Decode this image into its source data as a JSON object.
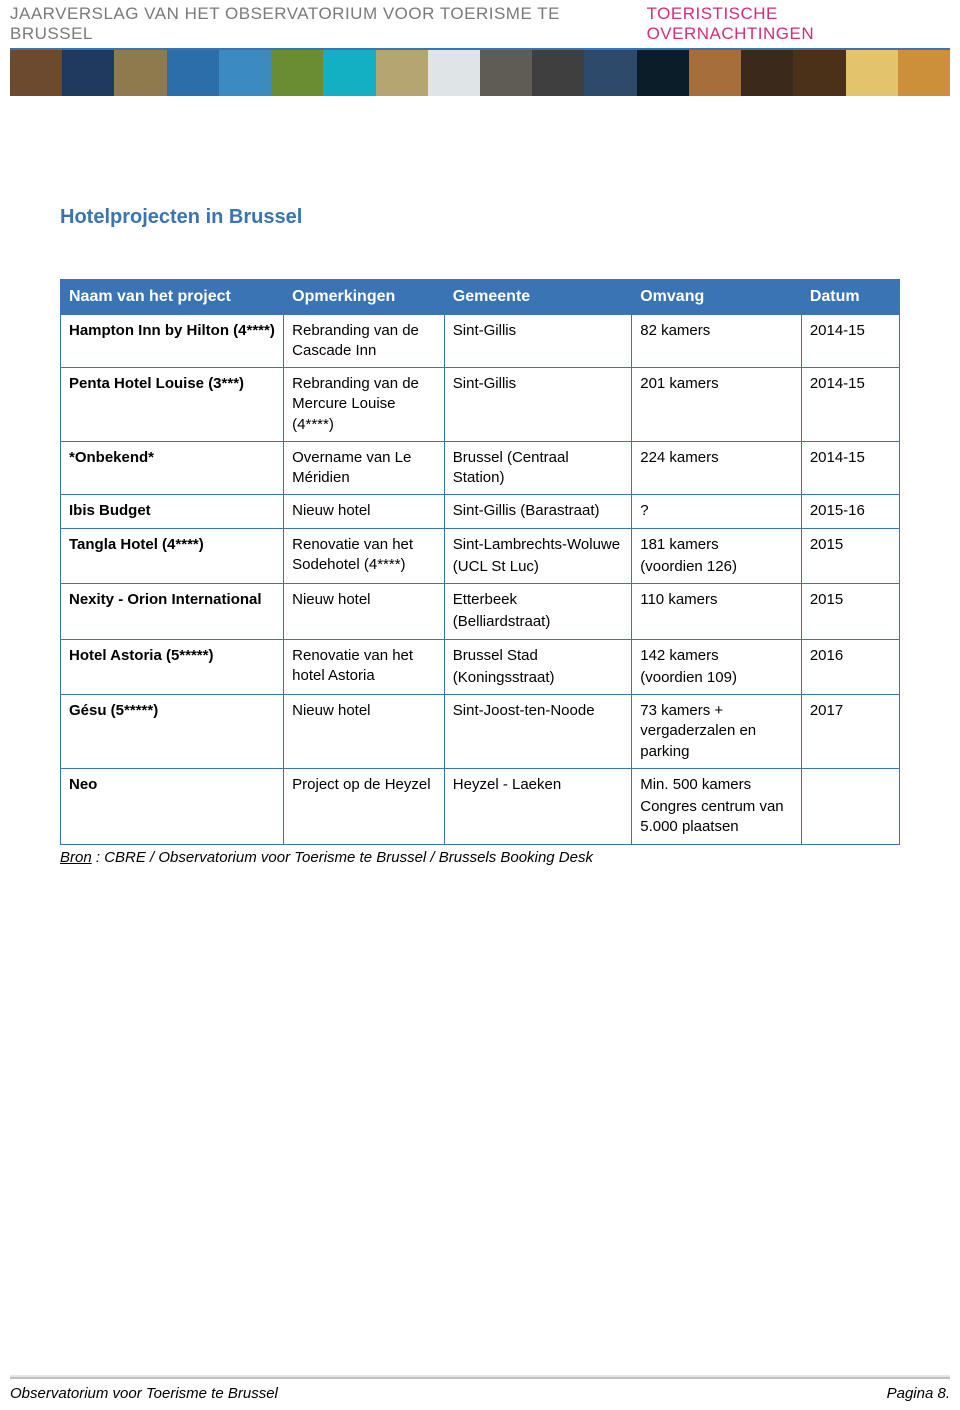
{
  "header": {
    "left_text": "JAARVERSLAG VAN HET OBSERVATORIUM VOOR TOERISME TE BRUSSEL",
    "right_text": "TOERISTISCHE OVERNACHTINGEN",
    "strip_colors": [
      "#6b4a2f",
      "#1f3a5d",
      "#8f7a4e",
      "#2c6fa8",
      "#3b8ac0",
      "#6a8d34",
      "#12b0c2",
      "#b5a570",
      "#dfe4e6",
      "#5e5c55",
      "#3f3f3f",
      "#2e4a6b",
      "#0c1d2a",
      "#a46f3a",
      "#3b2a1c",
      "#4b3118",
      "#e2c56a",
      "#cc8f3a"
    ]
  },
  "section_title": "Hotelprojecten in Brussel",
  "table": {
    "columns": [
      "Naam van het project",
      "Opmerkingen",
      "Gemeente",
      "Omvang",
      "Datum"
    ],
    "col_widths": [
      "25%",
      "18%",
      "21%",
      "19%",
      "11%"
    ],
    "rows": [
      {
        "project": "Hampton Inn by Hilton (4****)",
        "remarks": "Rebranding van de Cascade Inn",
        "gemeente": "Sint-Gillis",
        "omvang": "82 kamers",
        "datum": "2014-15"
      },
      {
        "project": "Penta Hotel Louise (3***)",
        "remarks": "Rebranding van de Mercure Louise (4****)",
        "gemeente": "Sint-Gillis",
        "omvang": "201 kamers",
        "datum": "2014-15"
      },
      {
        "project": "*Onbekend*",
        "remarks": "Overname van Le Méridien",
        "gemeente": "Brussel (Centraal Station)",
        "omvang": "224 kamers",
        "datum": "2014-15"
      },
      {
        "project": "Ibis Budget",
        "remarks": "Nieuw hotel",
        "gemeente": "Sint-Gillis (Barastraat)",
        "omvang": "?",
        "datum": "2015-16"
      },
      {
        "project": "Tangla Hotel (4****)",
        "remarks": "Renovatie van het Sodehotel (4****)",
        "gemeente": "Sint-Lambrechts-Woluwe",
        "gemeente_sub": "(UCL St Luc)",
        "omvang": "181 kamers",
        "omvang_sub": "(voordien 126)",
        "datum": "2015"
      },
      {
        "project": "Nexity - Orion International",
        "remarks": "Nieuw hotel",
        "gemeente": "Etterbeek",
        "gemeente_sub": "(Belliardstraat)",
        "omvang": "110 kamers",
        "datum": "2015"
      },
      {
        "project": "Hotel Astoria (5*****)",
        "remarks": "Renovatie van het hotel Astoria",
        "gemeente": "Brussel Stad",
        "gemeente_sub": "(Koningsstraat)",
        "omvang": "142 kamers",
        "omvang_sub": "(voordien 109)",
        "datum": "2016"
      },
      {
        "project": "Gésu (5*****)",
        "remarks": "Nieuw hotel",
        "gemeente": "Sint-Joost-ten-Noode",
        "omvang": "73 kamers + vergaderzalen en parking",
        "datum": "2017"
      },
      {
        "project": "Neo",
        "remarks": "Project op de Heyzel",
        "gemeente": "Heyzel - Laeken",
        "omvang": "Min. 500 kamers",
        "omvang_sub": "Congres centrum van 5.000 plaatsen",
        "datum": ""
      }
    ]
  },
  "source": {
    "label": "Bron",
    "text": " : CBRE / Observatorium voor Toerisme te Brussel / Brussels Booking Desk"
  },
  "footer": {
    "left": "Observatorium voor Toerisme te Brussel",
    "right": "Pagina 8."
  }
}
